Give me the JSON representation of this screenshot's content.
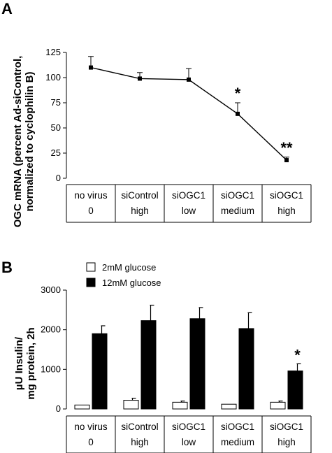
{
  "chart_data": [
    {
      "panel": "A",
      "type": "line",
      "ylabel_lines": [
        "OGC mRNA (percent Ad-siControl,",
        "normalized to cyclophilin B)"
      ],
      "ylim": [
        0,
        125
      ],
      "yticks": [
        0,
        25,
        50,
        75,
        100,
        125
      ],
      "categories": [
        {
          "line1": "no virus",
          "line2": "0"
        },
        {
          "line1": "siControl",
          "line2": "high"
        },
        {
          "line1": "siOGC1",
          "line2": "low"
        },
        {
          "line1": "siOGC1",
          "line2": "medium"
        },
        {
          "line1": "siOGC1",
          "line2": "high"
        }
      ],
      "values": [
        110,
        99,
        98,
        64,
        18
      ],
      "errors": [
        11,
        6,
        11,
        11,
        3
      ],
      "significance": [
        "",
        "",
        "",
        "*",
        "**"
      ]
    },
    {
      "panel": "B",
      "type": "bar",
      "ylabel_lines": [
        "µU Insulin/",
        "mg protein, 2h"
      ],
      "ylim": [
        0,
        3000
      ],
      "yticks": [
        0,
        1000,
        2000,
        3000
      ],
      "categories": [
        {
          "line1": "no virus",
          "line2": "0"
        },
        {
          "line1": "siControl",
          "line2": "high"
        },
        {
          "line1": "siOGC1",
          "line2": "low"
        },
        {
          "line1": "siOGC1",
          "line2": "medium"
        },
        {
          "line1": "siOGC1",
          "line2": "high"
        }
      ],
      "series": [
        {
          "name": "2mM glucose",
          "color": "#ffffff",
          "values": [
            100,
            220,
            170,
            120,
            170
          ],
          "errors": [
            0,
            50,
            30,
            0,
            30
          ]
        },
        {
          "name": "12mM glucose",
          "color": "#000000",
          "values": [
            1900,
            2230,
            2280,
            2030,
            960
          ],
          "errors": [
            200,
            390,
            280,
            400,
            180
          ]
        }
      ],
      "significance": [
        "",
        "",
        "",
        "",
        "*"
      ],
      "legend_position": "top-left"
    }
  ]
}
